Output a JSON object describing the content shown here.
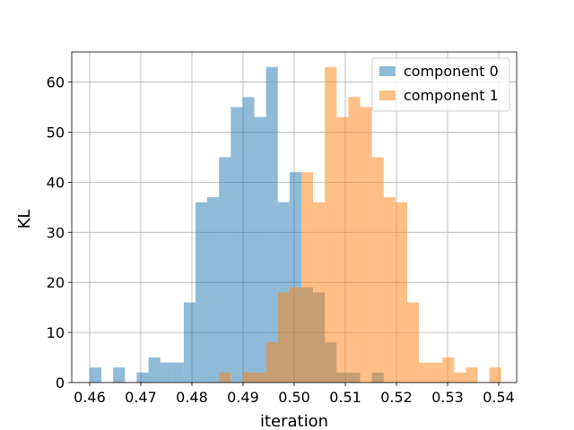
{
  "chart_data": {
    "type": "histogram",
    "xlabel": "iteration",
    "ylabel": "KL",
    "xlim": [
      0.4565,
      0.5435
    ],
    "ylim": [
      0,
      66
    ],
    "xticks": [
      "0.46",
      "0.47",
      "0.48",
      "0.49",
      "0.50",
      "0.51",
      "0.52",
      "0.53",
      "0.54"
    ],
    "yticks": [
      "0",
      "10",
      "20",
      "30",
      "40",
      "50",
      "60"
    ],
    "grid": true,
    "legend_position": "top-right",
    "series": [
      {
        "name": "component 0",
        "color": "#1f77b4",
        "bins": [
          {
            "x0": 0.46,
            "x1": 0.4623,
            "count": 3
          },
          {
            "x0": 0.4646,
            "x1": 0.4669,
            "count": 3
          },
          {
            "x0": 0.4692,
            "x1": 0.4715,
            "count": 2
          },
          {
            "x0": 0.4715,
            "x1": 0.4738,
            "count": 5
          },
          {
            "x0": 0.4738,
            "x1": 0.4761,
            "count": 4
          },
          {
            "x0": 0.4761,
            "x1": 0.4784,
            "count": 4
          },
          {
            "x0": 0.4784,
            "x1": 0.4807,
            "count": 16
          },
          {
            "x0": 0.4807,
            "x1": 0.483,
            "count": 36
          },
          {
            "x0": 0.483,
            "x1": 0.4853,
            "count": 37
          },
          {
            "x0": 0.4853,
            "x1": 0.4876,
            "count": 45
          },
          {
            "x0": 0.4876,
            "x1": 0.4899,
            "count": 55
          },
          {
            "x0": 0.4899,
            "x1": 0.4922,
            "count": 57
          },
          {
            "x0": 0.4922,
            "x1": 0.4945,
            "count": 53
          },
          {
            "x0": 0.4945,
            "x1": 0.4968,
            "count": 63
          },
          {
            "x0": 0.4968,
            "x1": 0.4991,
            "count": 36
          },
          {
            "x0": 0.4991,
            "x1": 0.5014,
            "count": 42
          },
          {
            "x0": 0.5014,
            "x1": 0.5037,
            "count": 19
          },
          {
            "x0": 0.5037,
            "x1": 0.506,
            "count": 18
          },
          {
            "x0": 0.506,
            "x1": 0.5083,
            "count": 8
          },
          {
            "x0": 0.5083,
            "x1": 0.5106,
            "count": 2
          },
          {
            "x0": 0.5106,
            "x1": 0.5129,
            "count": 2
          },
          {
            "x0": 0.5129,
            "x1": 0.5152,
            "count": 0
          },
          {
            "x0": 0.5152,
            "x1": 0.5175,
            "count": 2
          }
        ]
      },
      {
        "name": "component 1",
        "color": "#ff7f0e",
        "bins": [
          {
            "x0": 0.4853,
            "x1": 0.4876,
            "count": 2
          },
          {
            "x0": 0.4899,
            "x1": 0.4922,
            "count": 2
          },
          {
            "x0": 0.4922,
            "x1": 0.4945,
            "count": 2
          },
          {
            "x0": 0.4945,
            "x1": 0.4968,
            "count": 8
          },
          {
            "x0": 0.4968,
            "x1": 0.4991,
            "count": 18
          },
          {
            "x0": 0.4991,
            "x1": 0.5014,
            "count": 19
          },
          {
            "x0": 0.5014,
            "x1": 0.5037,
            "count": 42
          },
          {
            "x0": 0.5037,
            "x1": 0.506,
            "count": 36
          },
          {
            "x0": 0.506,
            "x1": 0.5083,
            "count": 63
          },
          {
            "x0": 0.5083,
            "x1": 0.5106,
            "count": 53
          },
          {
            "x0": 0.5106,
            "x1": 0.5129,
            "count": 57
          },
          {
            "x0": 0.5129,
            "x1": 0.5152,
            "count": 55
          },
          {
            "x0": 0.5152,
            "x1": 0.5175,
            "count": 45
          },
          {
            "x0": 0.5175,
            "x1": 0.5198,
            "count": 37
          },
          {
            "x0": 0.5198,
            "x1": 0.5221,
            "count": 36
          },
          {
            "x0": 0.5221,
            "x1": 0.5244,
            "count": 16
          },
          {
            "x0": 0.5244,
            "x1": 0.5267,
            "count": 4
          },
          {
            "x0": 0.5267,
            "x1": 0.529,
            "count": 4
          },
          {
            "x0": 0.529,
            "x1": 0.5313,
            "count": 5
          },
          {
            "x0": 0.5313,
            "x1": 0.5336,
            "count": 2
          },
          {
            "x0": 0.5336,
            "x1": 0.5359,
            "count": 3
          },
          {
            "x0": 0.5382,
            "x1": 0.5405,
            "count": 3
          }
        ]
      }
    ]
  }
}
